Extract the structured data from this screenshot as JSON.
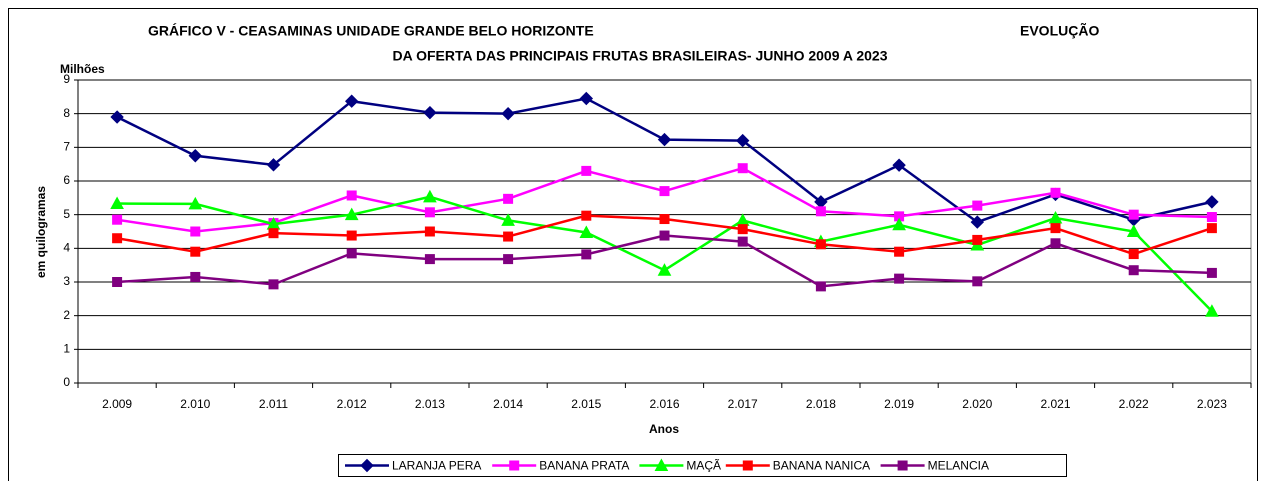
{
  "chart_data": {
    "type": "line",
    "title": [
      "GRÁFICO V - CEASAMINAS UNIDADE GRANDE BELO HORIZONTE",
      "EVOLUÇÃO",
      "DA OFERTA DAS PRINCIPAIS FRUTAS BRASILEIRAS- JUNHO 2009 A 2023"
    ],
    "y_unit": "Milhões",
    "y_label": "em quilogramas",
    "x_label": "Anos",
    "categories": [
      "2.009",
      "2.010",
      "2.011",
      "2.012",
      "2.013",
      "2.014",
      "2.015",
      "2.016",
      "2.017",
      "2.018",
      "2.019",
      "2.020",
      "2.021",
      "2.022",
      "2.023"
    ],
    "series": [
      {
        "name": "LARANJA PERA",
        "color": "#000080",
        "marker": "diamond",
        "values": [
          7.9,
          6.75,
          6.48,
          8.37,
          8.03,
          8.0,
          8.45,
          7.23,
          7.2,
          5.38,
          6.47,
          4.78,
          5.6,
          4.85,
          5.38
        ]
      },
      {
        "name": "BANANA PRATA",
        "color": "#ff00ff",
        "marker": "square",
        "values": [
          4.85,
          4.5,
          4.75,
          5.57,
          5.07,
          5.47,
          6.3,
          5.7,
          6.38,
          5.1,
          4.95,
          5.27,
          5.65,
          5.0,
          4.93
        ]
      },
      {
        "name": "MAÇÃ",
        "color": "#00ff00",
        "marker": "triangle",
        "values": [
          5.33,
          5.32,
          4.72,
          5.0,
          5.53,
          4.83,
          4.47,
          3.35,
          4.83,
          4.2,
          4.7,
          4.1,
          4.9,
          4.5,
          2.13
        ]
      },
      {
        "name": "BANANA NANICA",
        "color": "#ff0000",
        "marker": "square",
        "values": [
          4.3,
          3.9,
          4.45,
          4.38,
          4.5,
          4.35,
          4.97,
          4.87,
          4.57,
          4.12,
          3.9,
          4.25,
          4.6,
          3.83,
          4.6
        ]
      },
      {
        "name": "MELANCIA",
        "color": "#800080",
        "marker": "square",
        "values": [
          3.0,
          3.15,
          2.93,
          3.85,
          3.68,
          3.68,
          3.82,
          4.38,
          4.2,
          2.87,
          3.1,
          3.02,
          4.15,
          3.35,
          3.27
        ]
      }
    ],
    "ylim": [
      0,
      9
    ],
    "yticks": [
      0,
      1,
      2,
      3,
      4,
      5,
      6,
      7,
      8,
      9
    ],
    "grid": true,
    "legend": "bottom"
  }
}
